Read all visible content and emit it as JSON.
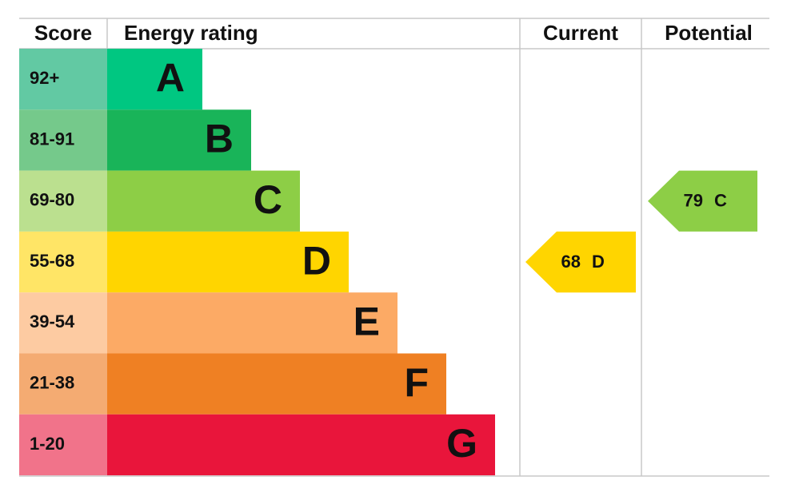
{
  "chart_data": {
    "type": "epc",
    "headers": {
      "score": "Score",
      "rating": "Energy rating",
      "current": "Current",
      "potential": "Potential"
    },
    "bands": [
      {
        "score": "92+",
        "letter": "A",
        "color": "#00c781",
        "score_color": "#62c9a3"
      },
      {
        "score": "81-91",
        "letter": "B",
        "color": "#19b459",
        "score_color": "#75c98b"
      },
      {
        "score": "69-80",
        "letter": "C",
        "color": "#8dce46",
        "score_color": "#bbe08f"
      },
      {
        "score": "55-68",
        "letter": "D",
        "color": "#ffd500",
        "score_color": "#ffe566"
      },
      {
        "score": "39-54",
        "letter": "E",
        "color": "#fcaa65",
        "score_color": "#fdcba2"
      },
      {
        "score": "21-38",
        "letter": "F",
        "color": "#ef8023",
        "score_color": "#f4ab72"
      },
      {
        "score": "1-20",
        "letter": "G",
        "color": "#e9153b",
        "score_color": "#f1738a"
      }
    ],
    "current": {
      "value": 68,
      "letter": "D"
    },
    "potential": {
      "value": 79,
      "letter": "C"
    }
  }
}
